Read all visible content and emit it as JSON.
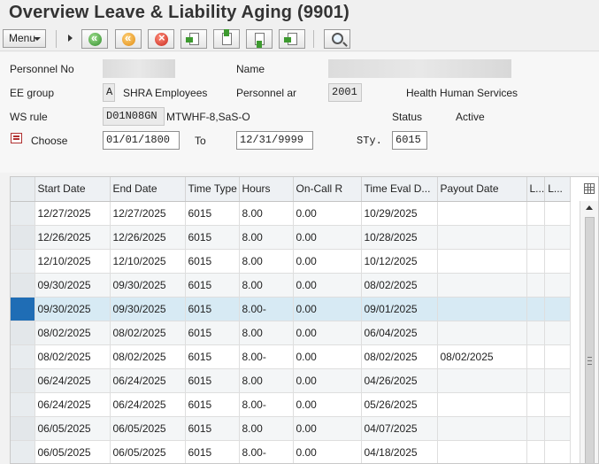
{
  "window": {
    "title": "Overview Leave & Liability Aging (9901)"
  },
  "toolbar": {
    "menu_label": "Menu",
    "buttons": [
      "back-icon",
      "exit-icon",
      "cancel-icon",
      "previous-record-icon",
      "first-record-icon",
      "next-record-icon",
      "last-record-icon",
      "find-icon"
    ]
  },
  "header": {
    "personnel_no_label": "Personnel No",
    "personnel_no_value": "",
    "name_label": "Name",
    "name_value": "",
    "ee_group_label": "EE group",
    "ee_group_code": "A",
    "ee_group_text": "SHRA Employees",
    "personnel_area_label": "Personnel ar",
    "personnel_area_code": "2001",
    "personnel_area_text": "Health Human Services",
    "ws_rule_label": "WS rule",
    "ws_rule_code": "D01N08GN",
    "ws_rule_text": "MTWHF-8,SaS-O",
    "status_label": "Status",
    "status_value": "Active",
    "choose_label": "Choose",
    "from_date": "01/01/1800",
    "to_label": "To",
    "to_date": "12/31/9999",
    "sty_label": "STy.",
    "sty_value": "6015"
  },
  "table": {
    "columns": [
      "Start Date",
      "End Date",
      "Time Type",
      "Hours",
      "On-Call R",
      "Time Eval D...",
      "Payout Date",
      "L...",
      "L..."
    ],
    "rows": [
      [
        "12/27/2025",
        "12/27/2025",
        "6015",
        "8.00",
        "0.00",
        "10/29/2025",
        "",
        "",
        ""
      ],
      [
        "12/26/2025",
        "12/26/2025",
        "6015",
        "8.00",
        "0.00",
        "10/28/2025",
        "",
        "",
        ""
      ],
      [
        "12/10/2025",
        "12/10/2025",
        "6015",
        "8.00",
        "0.00",
        "10/12/2025",
        "",
        "",
        ""
      ],
      [
        "09/30/2025",
        "09/30/2025",
        "6015",
        "8.00",
        "0.00",
        "08/02/2025",
        "",
        "",
        ""
      ],
      [
        "09/30/2025",
        "09/30/2025",
        "6015",
        "8.00-",
        "0.00",
        "09/01/2025",
        "",
        "",
        ""
      ],
      [
        "08/02/2025",
        "08/02/2025",
        "6015",
        "8.00",
        "0.00",
        "06/04/2025",
        "",
        "",
        ""
      ],
      [
        "08/02/2025",
        "08/02/2025",
        "6015",
        "8.00-",
        "0.00",
        "08/02/2025",
        "08/02/2025",
        "",
        ""
      ],
      [
        "06/24/2025",
        "06/24/2025",
        "6015",
        "8.00",
        "0.00",
        "04/26/2025",
        "",
        "",
        ""
      ],
      [
        "06/24/2025",
        "06/24/2025",
        "6015",
        "8.00-",
        "0.00",
        "05/26/2025",
        "",
        "",
        ""
      ],
      [
        "06/05/2025",
        "06/05/2025",
        "6015",
        "8.00",
        "0.00",
        "04/07/2025",
        "",
        "",
        ""
      ],
      [
        "06/05/2025",
        "06/05/2025",
        "6015",
        "8.00-",
        "0.00",
        "04/18/2025",
        "",
        "",
        ""
      ]
    ],
    "selected_row": 4
  }
}
